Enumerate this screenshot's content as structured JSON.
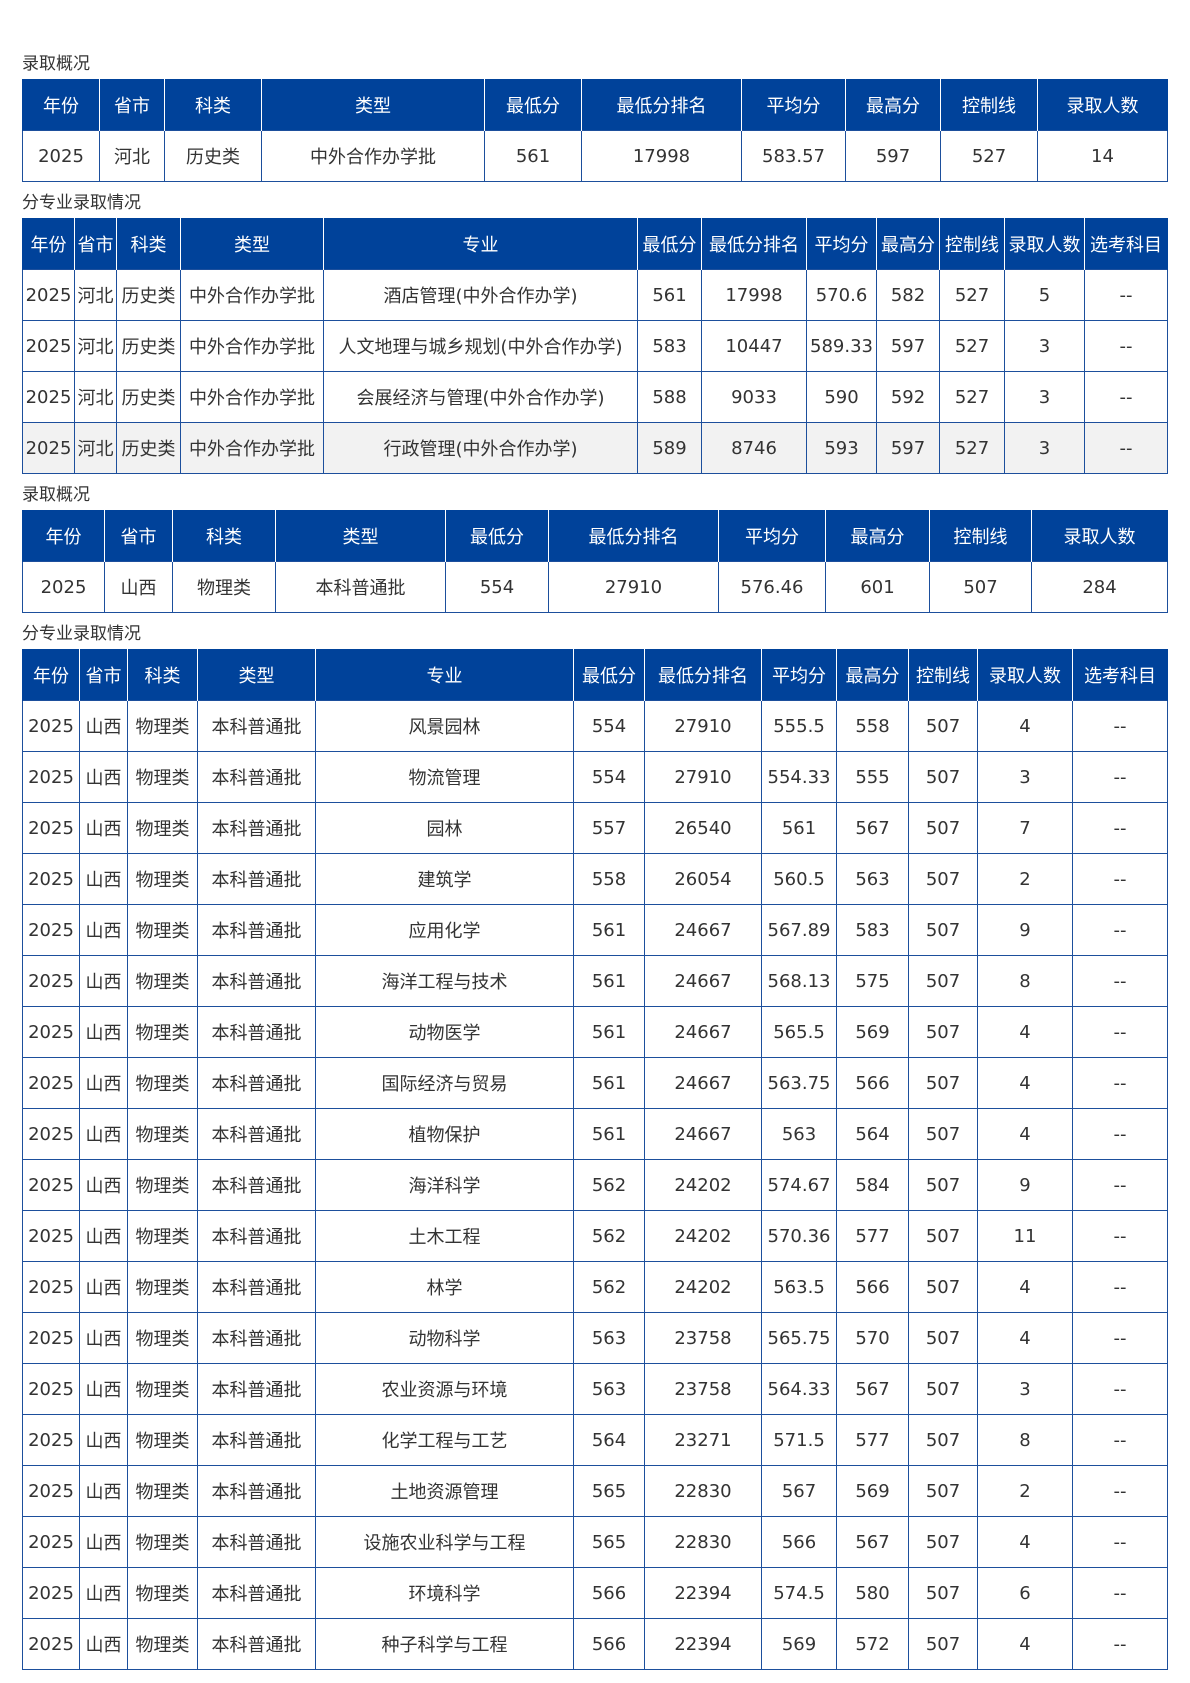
{
  "colors": {
    "header_bg": "#00429a",
    "border": "#1d4f9c",
    "highlight_row": "#f2f2f2"
  },
  "sections": [
    {
      "title": "录取概况",
      "headers": [
        "年份",
        "省市",
        "科类",
        "类型",
        "最低分",
        "最低分排名",
        "平均分",
        "最高分",
        "控制线",
        "录取人数"
      ],
      "rows": [
        [
          "2025",
          "河北",
          "历史类",
          "中外合作办学批",
          "561",
          "17998",
          "583.57",
          "597",
          "527",
          "14"
        ]
      ]
    },
    {
      "title": "分专业录取情况",
      "headers": [
        "年份",
        "省市",
        "科类",
        "类型",
        "专业",
        "最低分",
        "最低分排名",
        "平均分",
        "最高分",
        "控制线",
        "录取人数",
        "选考科目"
      ],
      "highlight_row": 3,
      "rows": [
        [
          "2025",
          "河北",
          "历史类",
          "中外合作办学批",
          "酒店管理(中外合作办学)",
          "561",
          "17998",
          "570.6",
          "582",
          "527",
          "5",
          "--"
        ],
        [
          "2025",
          "河北",
          "历史类",
          "中外合作办学批",
          "人文地理与城乡规划(中外合作办学)",
          "583",
          "10447",
          "589.33",
          "597",
          "527",
          "3",
          "--"
        ],
        [
          "2025",
          "河北",
          "历史类",
          "中外合作办学批",
          "会展经济与管理(中外合作办学)",
          "588",
          "9033",
          "590",
          "592",
          "527",
          "3",
          "--"
        ],
        [
          "2025",
          "河北",
          "历史类",
          "中外合作办学批",
          "行政管理(中外合作办学)",
          "589",
          "8746",
          "593",
          "597",
          "527",
          "3",
          "--"
        ]
      ]
    },
    {
      "title": "录取概况",
      "headers": [
        "年份",
        "省市",
        "科类",
        "类型",
        "最低分",
        "最低分排名",
        "平均分",
        "最高分",
        "控制线",
        "录取人数"
      ],
      "rows": [
        [
          "2025",
          "山西",
          "物理类",
          "本科普通批",
          "554",
          "27910",
          "576.46",
          "601",
          "507",
          "284"
        ]
      ]
    },
    {
      "title": "分专业录取情况",
      "headers": [
        "年份",
        "省市",
        "科类",
        "类型",
        "专业",
        "最低分",
        "最低分排名",
        "平均分",
        "最高分",
        "控制线",
        "录取人数",
        "选考科目"
      ],
      "rows": [
        [
          "2025",
          "山西",
          "物理类",
          "本科普通批",
          "风景园林",
          "554",
          "27910",
          "555.5",
          "558",
          "507",
          "4",
          "--"
        ],
        [
          "2025",
          "山西",
          "物理类",
          "本科普通批",
          "物流管理",
          "554",
          "27910",
          "554.33",
          "555",
          "507",
          "3",
          "--"
        ],
        [
          "2025",
          "山西",
          "物理类",
          "本科普通批",
          "园林",
          "557",
          "26540",
          "561",
          "567",
          "507",
          "7",
          "--"
        ],
        [
          "2025",
          "山西",
          "物理类",
          "本科普通批",
          "建筑学",
          "558",
          "26054",
          "560.5",
          "563",
          "507",
          "2",
          "--"
        ],
        [
          "2025",
          "山西",
          "物理类",
          "本科普通批",
          "应用化学",
          "561",
          "24667",
          "567.89",
          "583",
          "507",
          "9",
          "--"
        ],
        [
          "2025",
          "山西",
          "物理类",
          "本科普通批",
          "海洋工程与技术",
          "561",
          "24667",
          "568.13",
          "575",
          "507",
          "8",
          "--"
        ],
        [
          "2025",
          "山西",
          "物理类",
          "本科普通批",
          "动物医学",
          "561",
          "24667",
          "565.5",
          "569",
          "507",
          "4",
          "--"
        ],
        [
          "2025",
          "山西",
          "物理类",
          "本科普通批",
          "国际经济与贸易",
          "561",
          "24667",
          "563.75",
          "566",
          "507",
          "4",
          "--"
        ],
        [
          "2025",
          "山西",
          "物理类",
          "本科普通批",
          "植物保护",
          "561",
          "24667",
          "563",
          "564",
          "507",
          "4",
          "--"
        ],
        [
          "2025",
          "山西",
          "物理类",
          "本科普通批",
          "海洋科学",
          "562",
          "24202",
          "574.67",
          "584",
          "507",
          "9",
          "--"
        ],
        [
          "2025",
          "山西",
          "物理类",
          "本科普通批",
          "土木工程",
          "562",
          "24202",
          "570.36",
          "577",
          "507",
          "11",
          "--"
        ],
        [
          "2025",
          "山西",
          "物理类",
          "本科普通批",
          "林学",
          "562",
          "24202",
          "563.5",
          "566",
          "507",
          "4",
          "--"
        ],
        [
          "2025",
          "山西",
          "物理类",
          "本科普通批",
          "动物科学",
          "563",
          "23758",
          "565.75",
          "570",
          "507",
          "4",
          "--"
        ],
        [
          "2025",
          "山西",
          "物理类",
          "本科普通批",
          "农业资源与环境",
          "563",
          "23758",
          "564.33",
          "567",
          "507",
          "3",
          "--"
        ],
        [
          "2025",
          "山西",
          "物理类",
          "本科普通批",
          "化学工程与工艺",
          "564",
          "23271",
          "571.5",
          "577",
          "507",
          "8",
          "--"
        ],
        [
          "2025",
          "山西",
          "物理类",
          "本科普通批",
          "土地资源管理",
          "565",
          "22830",
          "567",
          "569",
          "507",
          "2",
          "--"
        ],
        [
          "2025",
          "山西",
          "物理类",
          "本科普通批",
          "设施农业科学与工程",
          "565",
          "22830",
          "566",
          "567",
          "507",
          "4",
          "--"
        ],
        [
          "2025",
          "山西",
          "物理类",
          "本科普通批",
          "环境科学",
          "566",
          "22394",
          "574.5",
          "580",
          "507",
          "6",
          "--"
        ],
        [
          "2025",
          "山西",
          "物理类",
          "本科普通批",
          "种子科学与工程",
          "566",
          "22394",
          "569",
          "572",
          "507",
          "4",
          "--"
        ]
      ]
    }
  ]
}
